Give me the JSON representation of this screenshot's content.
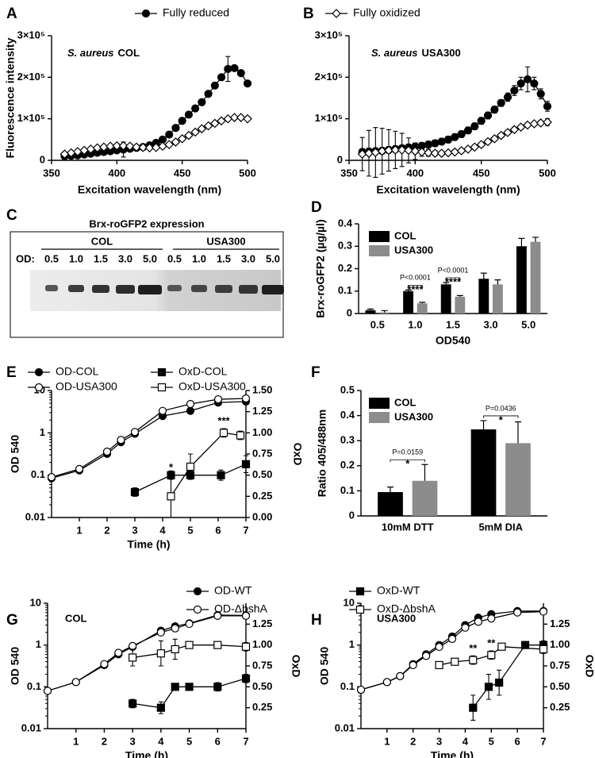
{
  "chart_data": [
    {
      "type": "line",
      "panel": "A",
      "species": "S. aureus",
      "strain": "COL",
      "ylabel": "Fluorescence intensity",
      "xlabel": "Excitation wavelength (nm)",
      "xlim": [
        350,
        500
      ],
      "xticks": [
        350,
        400,
        450,
        500
      ],
      "ylim": [
        0,
        300000
      ],
      "yticks": [
        0,
        {
          "value": 100000,
          "label": "1×10⁵"
        },
        {
          "value": 200000,
          "label": "2×10⁵"
        },
        {
          "value": 300000,
          "label": "3×10⁵"
        }
      ],
      "x": [
        360,
        365,
        370,
        375,
        380,
        385,
        390,
        395,
        400,
        405,
        410,
        415,
        420,
        425,
        430,
        435,
        440,
        445,
        450,
        455,
        460,
        465,
        470,
        475,
        480,
        485,
        490,
        495,
        500
      ],
      "series": [
        {
          "name": "Fully reduced",
          "color": "#000000",
          "marker": "circle-filled",
          "values": [
            10000,
            11000,
            12000,
            14000,
            16000,
            18000,
            20000,
            22000,
            24000,
            26000,
            28000,
            30000,
            32000,
            36000,
            42000,
            50000,
            62000,
            78000,
            95000,
            110000,
            125000,
            140000,
            160000,
            180000,
            200000,
            220000,
            222000,
            210000,
            185000
          ],
          "errors": [
            null,
            null,
            null,
            null,
            null,
            null,
            null,
            null,
            null,
            18000,
            null,
            null,
            null,
            null,
            null,
            null,
            null,
            null,
            null,
            null,
            null,
            null,
            null,
            null,
            null,
            30000,
            null,
            null,
            null
          ]
        },
        {
          "color": "#000000",
          "marker": "diamond-open",
          "values": [
            15000,
            18000,
            21000,
            24000,
            27000,
            30000,
            32000,
            34000,
            35000,
            35000,
            34000,
            32000,
            31000,
            30000,
            31000,
            34000,
            38000,
            44000,
            52000,
            60000,
            68000,
            76000,
            83000,
            89000,
            95000,
            100000,
            103000,
            103000,
            100000
          ]
        }
      ]
    },
    {
      "type": "line",
      "panel": "B",
      "species": "S. aureus",
      "strain": "USA300",
      "xlabel": "Excitation wavelength (nm)",
      "xlim": [
        350,
        500
      ],
      "xticks": [
        350,
        400,
        450,
        500
      ],
      "ylim": [
        0,
        300000
      ],
      "yticks": [
        0,
        {
          "value": 100000,
          "label": "1×10⁵"
        },
        {
          "value": 200000,
          "label": "2×10⁵"
        },
        {
          "value": 300000,
          "label": "3×10⁵"
        }
      ],
      "x": [
        360,
        365,
        370,
        375,
        380,
        385,
        390,
        395,
        400,
        405,
        410,
        415,
        420,
        425,
        430,
        435,
        440,
        445,
        450,
        455,
        460,
        465,
        470,
        475,
        480,
        485,
        490,
        495,
        500
      ],
      "series": [
        {
          "color": "#000000",
          "marker": "circle-filled",
          "values": [
            20000,
            21000,
            22000,
            23000,
            25000,
            27000,
            29000,
            31000,
            33000,
            35000,
            38000,
            41000,
            45000,
            50000,
            56000,
            63000,
            72000,
            82000,
            95000,
            108000,
            122000,
            138000,
            152000,
            168000,
            185000,
            195000,
            185000,
            160000,
            130000
          ],
          "errors": [
            8000,
            8000,
            8000,
            8000,
            8000,
            8000,
            8000,
            8000,
            8000,
            8000,
            8000,
            8000,
            8000,
            8000,
            8000,
            8000,
            8000,
            8000,
            8000,
            8000,
            8000,
            8000,
            10000,
            12000,
            15000,
            30000,
            15000,
            12000,
            12000
          ]
        },
        {
          "name": "Fully oxidized",
          "color": "#000000",
          "marker": "diamond-open",
          "values": [
            15000,
            17000,
            19000,
            22000,
            24000,
            25000,
            25000,
            24000,
            22000,
            20000,
            18000,
            17000,
            17000,
            18000,
            20000,
            23000,
            27000,
            32000,
            38000,
            45000,
            52000,
            60000,
            67000,
            74000,
            80000,
            85000,
            88000,
            90000,
            92000
          ],
          "errors": [
            40000,
            55000,
            60000,
            55000,
            50000,
            45000,
            40000,
            30000,
            20000,
            10000,
            8000,
            6000,
            5000,
            5000,
            5000,
            5000,
            5000,
            5000,
            5000,
            5000,
            5000,
            5000,
            5000,
            5000,
            5000,
            5000,
            5000,
            5000,
            8000
          ]
        }
      ]
    },
    {
      "type": "bar",
      "panel": "D",
      "ylabel": "Brx-roGFP2 (µg/µl)",
      "xlabel": "OD540",
      "categories": [
        "0.5",
        "1.0",
        "1.5",
        "3.0",
        "5.0"
      ],
      "ylim": [
        0,
        0.4
      ],
      "yticks": [
        0,
        0.1,
        0.2,
        0.3,
        0.4
      ],
      "series": [
        {
          "name": "COL",
          "color": "#000000",
          "values": [
            0.015,
            0.1,
            0.13,
            0.155,
            0.3
          ],
          "errors": [
            0.005,
            0.005,
            0.008,
            0.025,
            0.035
          ]
        },
        {
          "name": "USA300",
          "color": "#8c8c8c",
          "values": [
            0.005,
            0.045,
            0.075,
            0.13,
            0.32
          ],
          "errors": [
            0.008,
            0.005,
            0.005,
            0.02,
            0.02
          ]
        }
      ],
      "p_labels": [
        null,
        "P<0.0001",
        "P<0.0001",
        null,
        null
      ],
      "stars": [
        null,
        "****",
        "****",
        null,
        null
      ]
    },
    {
      "type": "line",
      "panel": "E",
      "ylabel": "OD 540",
      "y2label": "OxD",
      "xlabel": "Time (h)",
      "ylog": true,
      "xlim": [
        0,
        7
      ],
      "xticks": [
        1,
        2,
        3,
        4,
        5,
        6,
        7
      ],
      "ylim": [
        0.01,
        10
      ],
      "yticks": [
        0.01,
        0.1,
        1,
        10
      ],
      "y2lim": [
        0,
        1.5
      ],
      "y2ticks": [
        {
          "value": 0,
          "label": "0.00"
        },
        0.25,
        {
          "value": 0.5,
          "label": "0.50"
        },
        0.75,
        {
          "value": 1,
          "label": "1.00"
        },
        1.25,
        {
          "value": 1.5,
          "label": "1.50"
        }
      ],
      "series": [
        {
          "name": "OD-COL",
          "color": "#000000",
          "marker": "circle-filled",
          "x": [
            0,
            1,
            2,
            2.5,
            3,
            4,
            5,
            6,
            7
          ],
          "values": [
            0.085,
            0.13,
            0.32,
            0.6,
            0.95,
            2.5,
            3.3,
            5.2,
            5.5
          ]
        },
        {
          "name": "OD-USA300",
          "color": "#000000",
          "marker": "circle-open",
          "x": [
            0,
            1,
            2,
            2.5,
            3,
            4,
            5,
            6,
            7
          ],
          "values": [
            0.09,
            0.14,
            0.36,
            0.68,
            1.05,
            3.3,
            4.8,
            6.2,
            6.5
          ]
        },
        {
          "name": "OxD-COL",
          "color": "#000000",
          "marker": "square-filled",
          "axis": "y2",
          "x": [
            3,
            4.3,
            5,
            6.1,
            7
          ],
          "values": [
            0.3,
            0.5,
            0.5,
            0.5,
            0.63
          ],
          "errors": [
            0.05,
            0.05,
            0.05,
            0.06,
            0.1
          ]
        },
        {
          "name": "OxD-USA300",
          "color": "#000000",
          "marker": "square-open",
          "axis": "y2",
          "x": [
            4.3,
            5,
            6.2,
            6.8
          ],
          "values": [
            0.25,
            0.6,
            1.0,
            0.97
          ],
          "errors": [
            0.25,
            0.15,
            0.05,
            0.05
          ],
          "stars": [
            "*",
            null,
            "***",
            null
          ]
        }
      ]
    },
    {
      "type": "bar",
      "panel": "F",
      "ylabel": "Ratio 405/488nm",
      "categories": [
        "10mM DTT",
        "5mM DIA"
      ],
      "ylim": [
        0,
        0.5
      ],
      "yticks": [
        0,
        0.1,
        0.2,
        0.3,
        0.4,
        0.5
      ],
      "series": [
        {
          "name": "COL",
          "color": "#000000",
          "values": [
            0.095,
            0.345
          ],
          "errors": [
            0.02,
            0.035
          ]
        },
        {
          "name": "USA300",
          "color": "#8c8c8c",
          "values": [
            0.14,
            0.29
          ],
          "errors": [
            0.065,
            0.085
          ]
        }
      ],
      "p_labels": [
        "P=0.0159",
        "P=0.0436"
      ],
      "stars": [
        "*",
        "*"
      ]
    },
    {
      "type": "line",
      "panel": "G",
      "title": "COL",
      "ylabel": "OD 540",
      "y2label": "OxD",
      "xlabel": "Time (h)",
      "ylog": true,
      "xlim": [
        0,
        7
      ],
      "xticks": [
        1,
        2,
        3,
        4,
        5,
        6,
        7
      ],
      "ylim": [
        0.01,
        10
      ],
      "yticks": [
        0.01,
        0.1,
        1,
        10
      ],
      "y2lim": [
        0,
        1.5
      ],
      "y2ticks": [
        0.25,
        {
          "value": 0.5,
          "label": "0.50"
        },
        0.75,
        {
          "value": 1,
          "label": "1.00"
        },
        1.25
      ],
      "series": [
        {
          "name": "OD-WT",
          "color": "#000000",
          "marker": "circle-filled",
          "x": [
            0,
            1,
            2,
            2.5,
            3,
            4,
            4.5,
            5,
            6,
            7
          ],
          "values": [
            0.08,
            0.13,
            0.33,
            0.6,
            0.9,
            2.2,
            2.8,
            3.3,
            5.2,
            5.1
          ]
        },
        {
          "name": "OD-ΔbshA",
          "color": "#000000",
          "marker": "circle-open",
          "x": [
            0,
            1,
            2,
            2.5,
            3,
            4,
            4.5,
            5,
            6,
            7
          ],
          "values": [
            0.08,
            0.13,
            0.35,
            0.65,
            0.95,
            2.0,
            2.5,
            3.2,
            5.0,
            5.0
          ]
        },
        {
          "color": "#000000",
          "marker": "square-filled",
          "axis": "y2",
          "x": [
            3,
            4,
            4.5,
            5,
            6,
            7
          ],
          "values": [
            0.3,
            0.25,
            0.5,
            0.5,
            0.5,
            0.6
          ],
          "errors": [
            0.05,
            0.07,
            0.03,
            0.03,
            0.05,
            0.05
          ]
        },
        {
          "color": "#000000",
          "marker": "square-open",
          "axis": "y2",
          "x": [
            3,
            4,
            4.5,
            5,
            6,
            7
          ],
          "values": [
            0.85,
            0.9,
            0.95,
            1.0,
            1.0,
            0.98
          ],
          "errors": [
            0.1,
            0.15,
            0.12,
            0.03,
            0.03,
            0.05
          ]
        }
      ]
    },
    {
      "type": "line",
      "panel": "H",
      "title": "USA300",
      "ylabel": "OD 540",
      "y2label": "OxD",
      "xlabel": "Time (h)",
      "ylog": true,
      "xlim": [
        0,
        7
      ],
      "xticks": [
        1,
        2,
        3,
        4,
        5,
        6,
        7
      ],
      "ylim": [
        0.01,
        10
      ],
      "yticks": [
        0.01,
        0.1,
        1,
        10
      ],
      "y2lim": [
        0,
        1.5
      ],
      "y2ticks": [
        0.25,
        {
          "value": 0.5,
          "label": "0.50"
        },
        0.75,
        {
          "value": 1,
          "label": "1.00"
        },
        1.25
      ],
      "series": [
        {
          "color": "#000000",
          "marker": "circle-filled",
          "x": [
            0,
            1,
            1.5,
            2,
            2.5,
            3,
            3.5,
            4,
            4.5,
            5,
            6,
            7
          ],
          "values": [
            0.085,
            0.13,
            0.18,
            0.35,
            0.6,
            1.0,
            1.6,
            3.0,
            4.5,
            5.5,
            6.5,
            6.5
          ]
        },
        {
          "color": "#000000",
          "marker": "circle-open",
          "x": [
            0,
            1,
            1.5,
            2,
            2.5,
            3,
            3.5,
            4,
            4.5,
            5,
            6,
            7
          ],
          "values": [
            0.085,
            0.13,
            0.18,
            0.33,
            0.55,
            0.9,
            1.4,
            2.6,
            3.6,
            4.3,
            6.0,
            6.3
          ]
        },
        {
          "name": "OxD-WT",
          "color": "#000000",
          "marker": "square-filled",
          "axis": "y2",
          "x": [
            4.3,
            4.9,
            5.3,
            6.3,
            7
          ],
          "values": [
            0.25,
            0.5,
            0.55,
            1.0,
            1.0
          ],
          "errors": [
            0.15,
            0.15,
            0.15,
            0.03,
            0.05
          ]
        },
        {
          "name": "OxD-ΔbshA",
          "color": "#000000",
          "marker": "square-open",
          "axis": "y2",
          "x": [
            3,
            3.6,
            4.3,
            5,
            5.4,
            7
          ],
          "values": [
            0.76,
            0.8,
            0.82,
            0.88,
            0.98,
            0.95
          ],
          "errors": [
            0.03,
            0.03,
            0.05,
            0.05,
            0.03,
            0.05
          ],
          "stars": [
            null,
            null,
            "**",
            "**",
            null,
            null
          ]
        }
      ]
    }
  ],
  "blot": {
    "panel": "C",
    "title": "Brx-roGFP2 expression",
    "lane_label": "OD:",
    "groups": [
      {
        "name": "COL",
        "lanes": [
          "0.5",
          "1.0",
          "1.5",
          "3.0",
          "5.0"
        ]
      },
      {
        "name": "USA300",
        "lanes": [
          "0.5",
          "1.0",
          "1.5",
          "3.0",
          "5.0"
        ]
      }
    ]
  }
}
